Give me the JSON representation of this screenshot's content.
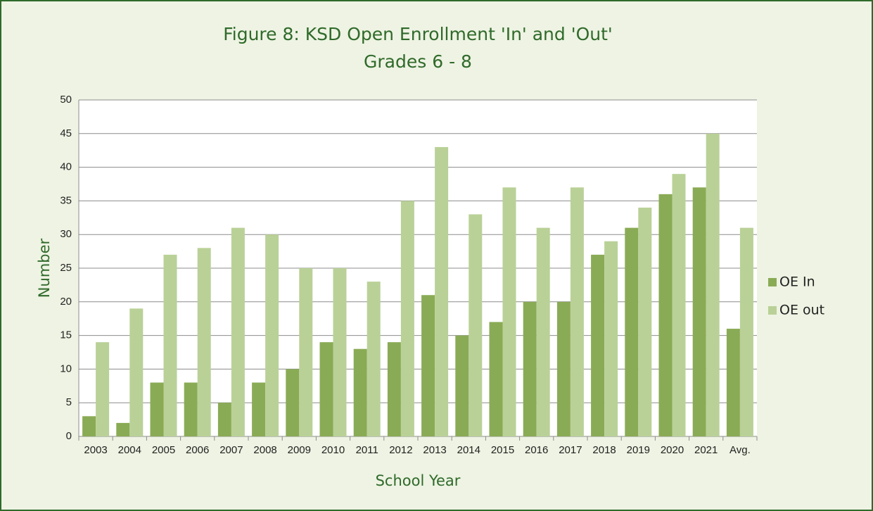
{
  "chart_data": {
    "type": "bar",
    "title": "Figure 8: KSD Open Enrollment 'In' and 'Out'",
    "subtitle": "Grades 6 - 8",
    "x_label": "School Year",
    "y_label": "Number",
    "categories": [
      "2003",
      "2004",
      "2005",
      "2006",
      "2007",
      "2008",
      "2009",
      "2010",
      "2011",
      "2012",
      "2013",
      "2014",
      "2015",
      "2016",
      "2017",
      "2018",
      "2019",
      "2020",
      "2021",
      "Avg."
    ],
    "series": [
      {
        "name": "OE In",
        "color": "#8aab55",
        "values": [
          3,
          2,
          8,
          8,
          5,
          8,
          10,
          14,
          13,
          14,
          21,
          15,
          17,
          20,
          20,
          27,
          31,
          36,
          37,
          16
        ]
      },
      {
        "name": "OE out",
        "color": "#b9d197",
        "values": [
          14,
          19,
          27,
          28,
          31,
          30,
          25,
          25,
          23,
          35,
          43,
          33,
          37,
          31,
          37,
          29,
          34,
          39,
          45,
          31
        ]
      }
    ],
    "ylim": [
      0,
      50
    ],
    "yticks": [
      0,
      5,
      10,
      15,
      20,
      25,
      30,
      35,
      40,
      45,
      50
    ],
    "grid": true,
    "legend": "right"
  }
}
